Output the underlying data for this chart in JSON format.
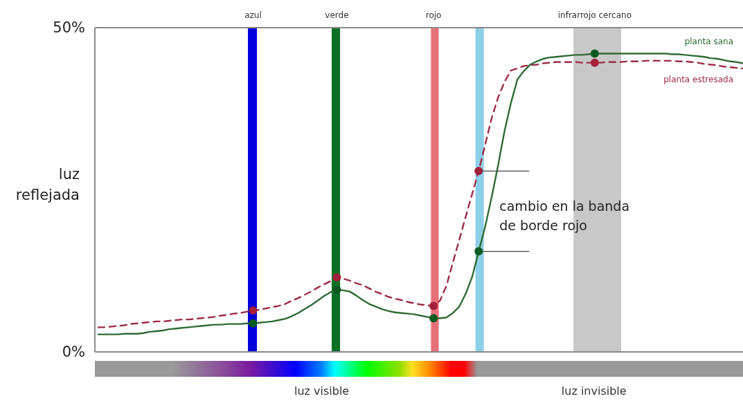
{
  "chart_data": {
    "type": "line",
    "ylabel": "luz reflejada",
    "ylim": [
      0,
      50
    ],
    "yticks": [
      {
        "value": 0,
        "label": "0%"
      },
      {
        "value": 50,
        "label": "50%"
      }
    ],
    "legend": false,
    "categories": [
      null,
      null,
      null,
      null,
      null,
      null,
      null,
      null,
      null,
      null,
      null,
      null,
      null,
      null,
      null,
      null,
      null,
      null,
      null,
      null,
      null,
      null,
      null,
      null,
      "azul",
      null,
      null,
      null,
      null,
      null,
      null,
      null,
      null,
      null,
      null,
      null,
      null,
      "verde",
      null,
      null,
      null,
      null,
      null,
      null,
      null,
      null,
      null,
      null,
      null,
      null,
      null,
      null,
      "rojo",
      null,
      null,
      null,
      null,
      null,
      null,
      null,
      null,
      null,
      null,
      null,
      null,
      null,
      null,
      null,
      null,
      null,
      null,
      null,
      null,
      null,
      null,
      null,
      null,
      "infrarrojo cercano",
      null,
      null,
      null,
      null,
      null,
      null,
      null,
      null,
      null,
      null,
      null,
      null,
      null,
      null,
      null,
      null,
      null,
      null,
      null,
      null,
      null,
      null,
      null
    ],
    "series": [
      {
        "name": "planta sana",
        "color": "#2f6b34",
        "line_style": "solid",
        "values": [
          2.7,
          2.7,
          2.7,
          2.7,
          2.8,
          2.8,
          2.8,
          2.9,
          3.1,
          3.2,
          3.3,
          3.5,
          3.6,
          3.7,
          3.8,
          3.9,
          4.0,
          4.1,
          4.2,
          4.2,
          4.3,
          4.3,
          4.3,
          4.4,
          4.4,
          4.5,
          4.6,
          4.7,
          4.9,
          5.1,
          5.5,
          6.0,
          6.6,
          7.2,
          7.9,
          8.6,
          9.2,
          9.6,
          9.5,
          9.3,
          8.7,
          8.0,
          7.4,
          7.0,
          6.6,
          6.3,
          6.1,
          6.0,
          5.9,
          5.8,
          5.6,
          5.4,
          5.2,
          5.2,
          5.3,
          6.0,
          7.0,
          9.0,
          11.6,
          15.5,
          19.3,
          23.8,
          28.7,
          34.0,
          38.4,
          42.0,
          43.3,
          44.3,
          44.8,
          45.2,
          45.4,
          45.5,
          45.6,
          45.7,
          45.8,
          45.8,
          45.9,
          46.0,
          46.0,
          46.0,
          46.0,
          46.0,
          46.0,
          46.0,
          46.0,
          46.0,
          46.0,
          46.0,
          46.0,
          45.9,
          45.9,
          45.8,
          45.7,
          45.6,
          45.5,
          45.3,
          45.2,
          45.0,
          44.8,
          44.7,
          44.5
        ]
      },
      {
        "name": "planta estresada",
        "color": "#9b2c45",
        "line_style": "dashed",
        "values": [
          3.8,
          3.8,
          3.9,
          4.0,
          4.1,
          4.3,
          4.4,
          4.5,
          4.6,
          4.7,
          4.7,
          4.8,
          4.9,
          5.0,
          5.0,
          5.1,
          5.2,
          5.3,
          5.4,
          5.6,
          5.7,
          5.9,
          6.0,
          6.2,
          6.4,
          6.5,
          6.7,
          6.9,
          7.1,
          7.4,
          7.9,
          8.3,
          8.8,
          9.3,
          9.9,
          10.4,
          10.9,
          11.5,
          11.3,
          11.0,
          10.6,
          10.3,
          9.8,
          9.3,
          8.9,
          8.5,
          8.2,
          8.0,
          7.7,
          7.5,
          7.3,
          7.2,
          7.1,
          7.9,
          10.2,
          13.8,
          17.3,
          20.9,
          24.4,
          27.9,
          31.9,
          36.0,
          39.2,
          41.6,
          43.4,
          43.7,
          44.1,
          44.2,
          44.3,
          44.5,
          44.6,
          44.7,
          44.7,
          44.7,
          44.7,
          44.6,
          44.6,
          44.6,
          44.6,
          44.7,
          44.7,
          44.7,
          44.8,
          44.8,
          44.8,
          44.9,
          44.9,
          44.9,
          44.9,
          44.9,
          44.8,
          44.8,
          44.7,
          44.6,
          44.4,
          44.3,
          44.2,
          44.0,
          43.9,
          43.8,
          43.7
        ]
      },
      {
        "type": "scatter",
        "color": "#0b5a1f",
        "marker": "circle",
        "values": [
          null,
          null,
          null,
          null,
          null,
          null,
          null,
          null,
          null,
          null,
          null,
          null,
          null,
          null,
          null,
          null,
          null,
          null,
          null,
          null,
          null,
          null,
          null,
          null,
          4.4,
          null,
          null,
          null,
          null,
          null,
          null,
          null,
          null,
          null,
          null,
          null,
          null,
          9.6,
          null,
          null,
          null,
          null,
          null,
          null,
          null,
          null,
          null,
          null,
          null,
          null,
          null,
          null,
          5.2,
          null,
          null,
          null,
          null,
          null,
          null,
          15.5,
          null,
          null,
          null,
          null,
          null,
          null,
          null,
          null,
          null,
          null,
          null,
          null,
          null,
          null,
          null,
          null,
          null,
          46.0,
          null,
          null,
          null,
          null,
          null,
          null,
          null,
          null,
          null,
          null,
          null,
          null,
          null,
          null,
          null,
          null,
          null,
          null,
          null,
          null,
          null,
          null,
          null
        ]
      },
      {
        "type": "scatter",
        "color": "#a3203a",
        "marker": "circle",
        "values": [
          null,
          null,
          null,
          null,
          null,
          null,
          null,
          null,
          null,
          null,
          null,
          null,
          null,
          null,
          null,
          null,
          null,
          null,
          null,
          null,
          null,
          null,
          null,
          null,
          6.4,
          null,
          null,
          null,
          null,
          null,
          null,
          null,
          null,
          null,
          null,
          null,
          null,
          11.5,
          null,
          null,
          null,
          null,
          null,
          null,
          null,
          null,
          null,
          null,
          null,
          null,
          null,
          null,
          7.1,
          null,
          null,
          null,
          null,
          null,
          null,
          27.9,
          null,
          null,
          null,
          null,
          null,
          null,
          null,
          null,
          null,
          null,
          null,
          null,
          null,
          null,
          null,
          null,
          null,
          44.6,
          null,
          null,
          null,
          null,
          null,
          null,
          null,
          null,
          null,
          null,
          null,
          null,
          null,
          null,
          null,
          null,
          null,
          null,
          null,
          null,
          null,
          null,
          null
        ]
      }
    ],
    "annotations": [
      "cambio en la banda de borde rojo",
      "luz visible",
      "luz invisible"
    ]
  }
}
